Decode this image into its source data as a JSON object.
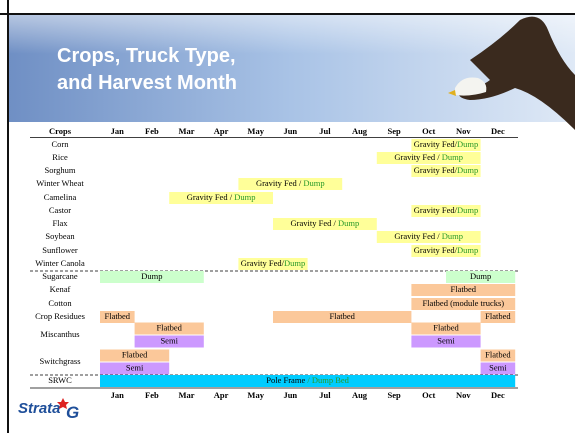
{
  "header": {
    "title_lines": [
      "Crops, Truck Type,",
      "and Harvest Month"
    ]
  },
  "table": {
    "corner": "Crops",
    "months": [
      "Jan",
      "Feb",
      "Mar",
      "Apr",
      "May",
      "Jun",
      "Jul",
      "Aug",
      "Sep",
      "Oct",
      "Nov",
      "Dec"
    ],
    "rows": [
      {
        "crop": "Corn",
        "bars": [
          {
            "parts": [
              "Gravity Fed/",
              "Dump"
            ]
          }
        ]
      },
      {
        "crop": "Rice",
        "bars": [
          {
            "parts": [
              "Gravity Fed / ",
              "Dump"
            ]
          }
        ]
      },
      {
        "crop": "Sorghum",
        "bars": [
          {
            "parts": [
              "Gravity Fed/",
              "Dump"
            ]
          }
        ]
      },
      {
        "crop": "Winter Wheat",
        "bars": [
          {
            "parts": [
              "Gravity Fed / ",
              "Dump"
            ]
          }
        ]
      },
      {
        "crop": "Camelina",
        "bars": [
          {
            "parts": [
              "Gravity Fed / ",
              "Dump"
            ]
          }
        ]
      },
      {
        "crop": "Castor",
        "bars": [
          {
            "parts": [
              "Gravity Fed/",
              "Dump"
            ]
          }
        ]
      },
      {
        "crop": "Flax",
        "bars": [
          {
            "parts": [
              "Gravity Fed / ",
              "Dump"
            ]
          }
        ]
      },
      {
        "crop": "Soybean",
        "bars": [
          {
            "parts": [
              "Gravity Fed / ",
              "Dump"
            ]
          }
        ]
      },
      {
        "crop": "Sunflower",
        "bars": [
          {
            "parts": [
              "Gravity Fed/",
              "Dump"
            ]
          }
        ]
      },
      {
        "crop": "Winter Canola",
        "bars": [
          {
            "parts": [
              "Gravity Fed/",
              "Dump"
            ]
          }
        ]
      },
      {
        "crop": "Sugarcane",
        "bars": [
          {
            "parts": [
              "Dump"
            ]
          },
          {
            "parts": [
              "Dump"
            ]
          }
        ]
      },
      {
        "crop": "Kenaf",
        "bars": [
          {
            "parts": [
              "Flatbed"
            ]
          }
        ]
      },
      {
        "crop": "Cotton",
        "bars": [
          {
            "parts": [
              "Flatbed (module trucks)"
            ]
          }
        ]
      },
      {
        "crop": "Crop Residues",
        "bars": [
          {
            "parts": [
              "Flatbed"
            ]
          },
          {
            "parts": [
              "Flatbed"
            ]
          },
          {
            "parts": [
              "Flatbed"
            ]
          }
        ]
      },
      {
        "crop": "Miscanthus",
        "bars": [
          {
            "parts": [
              "Flatbed"
            ]
          },
          {
            "parts": [
              "Semi"
            ]
          },
          {
            "parts": [
              "Flatbed"
            ]
          },
          {
            "parts": [
              "Semi"
            ]
          }
        ]
      },
      {
        "crop": "Switchgrass",
        "bars": [
          {
            "parts": [
              "Flatbed"
            ]
          },
          {
            "parts": [
              "Semi"
            ]
          },
          {
            "parts": [
              "Flatbed"
            ]
          },
          {
            "parts": [
              "Semi"
            ]
          }
        ]
      },
      {
        "crop": "SRWC",
        "bars": [
          {
            "parts": [
              "Pole Frame",
              " / Dump Bed"
            ]
          }
        ]
      }
    ]
  },
  "logo": {
    "parts": [
      "Strata",
      "G"
    ]
  }
}
